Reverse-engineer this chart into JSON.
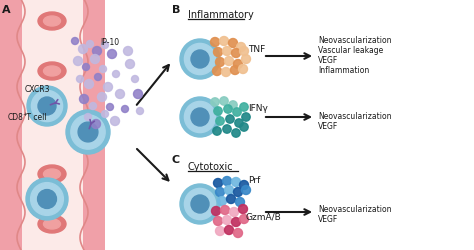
{
  "bg_color": "#ffffff",
  "vessel_pink": "#f0a0a8",
  "vessel_inner": "#fceae8",
  "vessel_wavy_color": "#e08888",
  "rbc_color": "#e07878",
  "rbc_inner": "#f0a0a0",
  "cell_outer": "#7bbdd6",
  "cell_mid": "#a8d4e8",
  "cell_dark": "#5090b8",
  "receptor_color": "#7055a8",
  "ip10_light": "#c0b8e0",
  "ip10_dark": "#9080c8",
  "tnf_light": "#f0c090",
  "tnf_dark": "#e09050",
  "ifng_dark": "#208888",
  "ifng_med": "#40b0a0",
  "ifng_light": "#88ccc0",
  "prf_dark": "#1858a0",
  "prf_med": "#3888c8",
  "prf_light": "#70b8e0",
  "gzm_dark": "#c03060",
  "gzm_med": "#e06888",
  "gzm_light": "#f0a8c0",
  "arrow_color": "#1a1a1a",
  "text_color": "#1a1a1a",
  "label_A": "A",
  "label_B": "B",
  "label_C": "C",
  "label_CXCR3": "CXCR3",
  "label_IP10": "IP-10",
  "label_CD8": "CD8",
  "label_plus": "+",
  "label_Tcell": " T cell",
  "label_inflammatory": "Inflammatory",
  "label_TNF": "TNF",
  "label_IFNy": "IFNγ",
  "label_cytotoxic": "Cytotoxic",
  "label_Prf": "Prf",
  "label_GzmAB": "GzmA/B",
  "neo1_line1": "Neovascularization",
  "neo1_line2": "Vascular leakage",
  "neo1_line3": "VEGF",
  "neo1_line4": "Inflammation",
  "neo2_line1": "Neovascularization",
  "neo2_line2": "VEGF",
  "neo3_line1": "Neovascularization",
  "neo3_line2": "VEGF"
}
